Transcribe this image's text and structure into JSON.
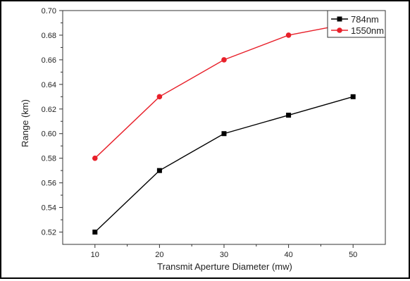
{
  "chart_data": {
    "type": "line",
    "xlabel": "Transmit Aperture Diameter (mw)",
    "ylabel": "Range (km)",
    "x": [
      10,
      20,
      30,
      40,
      50
    ],
    "x_ticks": [
      "10",
      "20",
      "30",
      "40",
      "50"
    ],
    "xlim": [
      5,
      55
    ],
    "ylim": [
      0.51,
      0.7
    ],
    "y_ticks": [
      "0.52",
      "0.54",
      "0.56",
      "0.58",
      "0.60",
      "0.62",
      "0.64",
      "0.66",
      "0.68",
      "0.70"
    ],
    "y_tick_values": [
      0.52,
      0.54,
      0.56,
      0.58,
      0.6,
      0.62,
      0.64,
      0.66,
      0.68,
      0.7
    ],
    "grid": false,
    "legend_position": "top-right",
    "series": [
      {
        "name": "784nm",
        "values": [
          0.52,
          0.57,
          0.6,
          0.615,
          0.63
        ],
        "color": "#000000",
        "marker": "square"
      },
      {
        "name": "1550nm",
        "values": [
          0.58,
          0.63,
          0.66,
          0.68,
          0.69
        ],
        "color": "#e8202a",
        "marker": "circle"
      }
    ]
  }
}
